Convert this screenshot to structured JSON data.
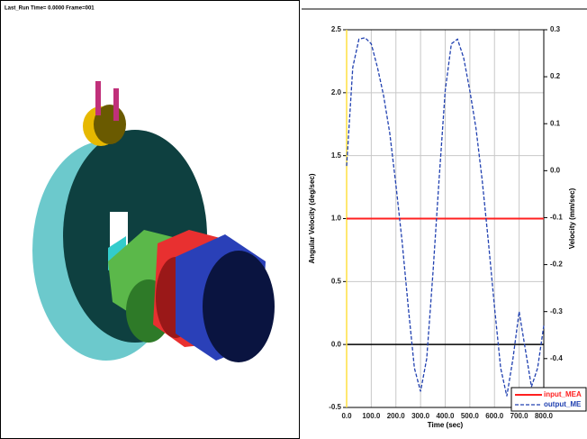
{
  "view": {
    "status": "Last_Run   Time= 0.0000   Frame=001"
  },
  "chart_data": {
    "type": "line",
    "xlabel": "Time (sec)",
    "ylabel": "Angular Velocity (deg/sec)",
    "y2label": "Velocity (mm/sec)",
    "xlim": [
      0,
      800
    ],
    "ylim": [
      -0.5,
      2.5
    ],
    "y2lim": [
      -0.504,
      0.3
    ],
    "xticks": [
      {
        "value": 0,
        "label": "0.0"
      },
      {
        "value": 100,
        "label": "100.0"
      },
      {
        "value": 200,
        "label": "200.0"
      },
      {
        "value": 300,
        "label": "300.0"
      },
      {
        "value": 400,
        "label": "400.0"
      },
      {
        "value": 500,
        "label": "500.0"
      },
      {
        "value": 600,
        "label": "600.0"
      },
      {
        "value": 700,
        "label": "700.0"
      },
      {
        "value": 800,
        "label": "800.0"
      }
    ],
    "yticks": [
      {
        "value": -0.5,
        "label": "-0.5"
      },
      {
        "value": 0,
        "label": "0.0"
      },
      {
        "value": 0.5,
        "label": "0.5"
      },
      {
        "value": 1,
        "label": "1.0"
      },
      {
        "value": 1.5,
        "label": "1.5"
      },
      {
        "value": 2,
        "label": "2.0"
      },
      {
        "value": 2.5,
        "label": "2.5"
      }
    ],
    "y2ticks": [
      -0.4,
      -0.3,
      -0.2,
      -0.1,
      {
        "value": 0,
        "label": "0.0"
      },
      0.1,
      0.2,
      0.3
    ],
    "grid": true,
    "series": [
      {
        "name": "input_MEA",
        "color": "#ff2020",
        "axis": "y",
        "x": [
          0,
          800
        ],
        "values": [
          1.0,
          1.0
        ]
      },
      {
        "name": "output_ME",
        "color": "#2040b0",
        "axis": "y2",
        "dashed": true,
        "x": [
          0,
          25,
          50,
          75,
          100,
          125,
          150,
          175,
          200,
          225,
          250,
          275,
          300,
          325,
          350,
          375,
          400,
          425,
          450,
          475,
          500,
          525,
          550,
          575,
          600,
          625,
          650,
          675,
          700,
          725,
          750,
          775,
          800
        ],
        "values": [
          0.01,
          0.22,
          0.28,
          0.283,
          0.27,
          0.22,
          0.16,
          0.08,
          -0.03,
          -0.15,
          -0.29,
          -0.42,
          -0.47,
          -0.4,
          -0.22,
          -0.02,
          0.17,
          0.27,
          0.28,
          0.24,
          0.17,
          0.09,
          -0.02,
          -0.15,
          -0.29,
          -0.42,
          -0.48,
          -0.4,
          -0.3,
          -0.38,
          -0.46,
          -0.42,
          -0.33
        ]
      }
    ]
  }
}
